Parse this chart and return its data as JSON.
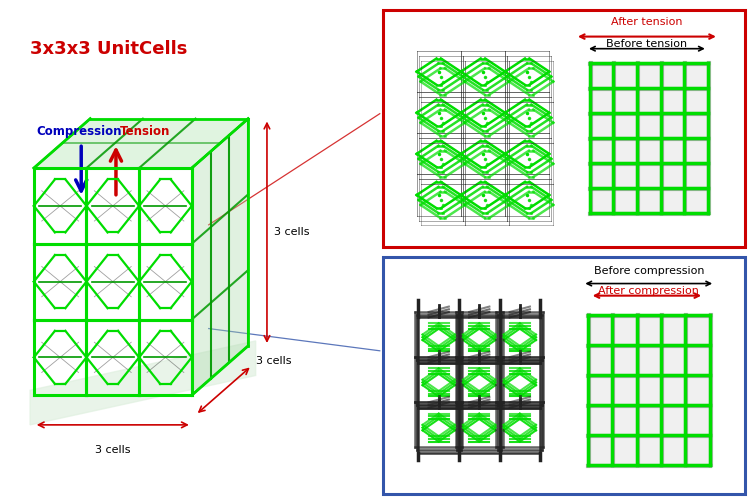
{
  "bg_color": "#ffffff",
  "main_label": "3x3x3 UnitCells",
  "main_label_color": "#cc0000",
  "compression_label": "Compression",
  "compression_color": "#0000bb",
  "tension_label": "Tension",
  "tension_color": "#cc0000",
  "cells_right": "3 cells",
  "cells_bottom1": "3 cells",
  "cells_bottom2": "3 cells",
  "tension_border": "#cc0000",
  "compression_border": "#3355aa",
  "after_tension": "After tension",
  "before_tension": "Before tension",
  "after_compression": "After compression",
  "before_compression": "Before compression",
  "bright_green": "#00dd00",
  "mid_green": "#009900",
  "dark_green": "#004400",
  "black": "#111111",
  "light_green_fill": "#d0ecd0",
  "panel_bg": "#f8f8f8"
}
